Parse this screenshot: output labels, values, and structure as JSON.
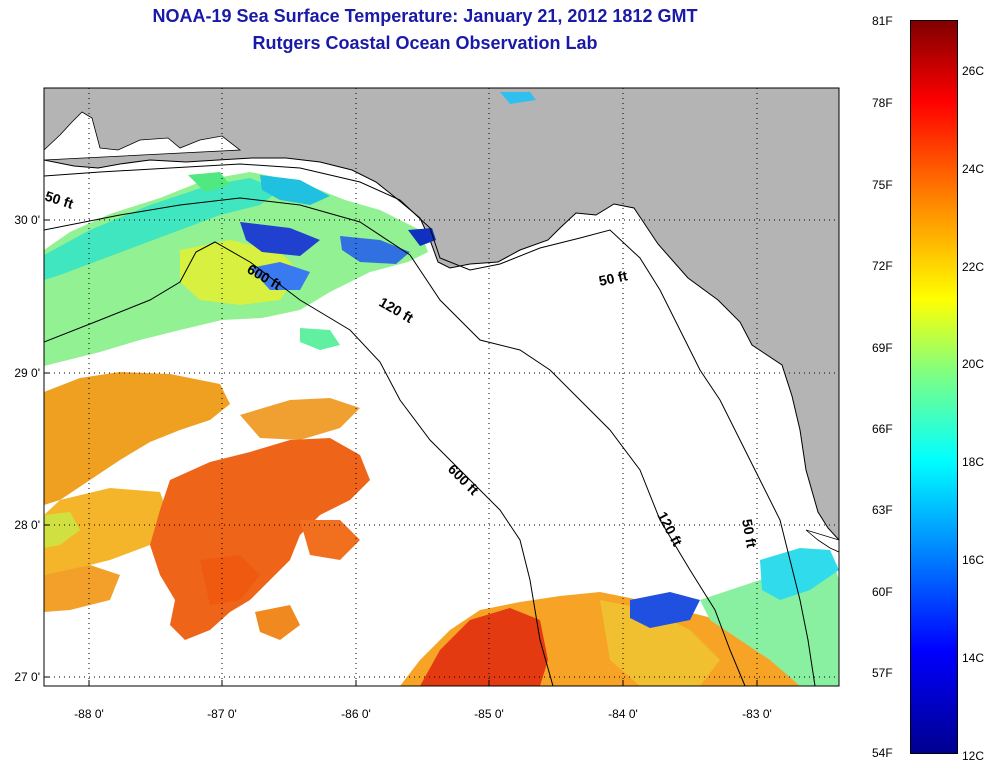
{
  "header": {
    "title": "NOAA-19 Sea Surface Temperature:  January 21, 2012 1812 GMT",
    "subtitle": "Rutgers Coastal Ocean Observation Lab"
  },
  "map": {
    "lat_labels": [
      "30 0'",
      "29 0'",
      "28 0'",
      "27 0'"
    ],
    "lon_labels": [
      "-88 0'",
      "-87 0'",
      "-86 0'",
      "-85 0'",
      "-84 0'",
      "-83 0'"
    ],
    "contour_labels": {
      "c50_west": "50 ft",
      "c600_north": "600 ft",
      "c120_north": "120 ft",
      "c50_east": "50 ft",
      "c600_south": "600 ft",
      "c120_south": "120 ft",
      "c50_south": "50 ft"
    }
  },
  "colorbar": {
    "fahrenheit": [
      "81F",
      "78F",
      "75F",
      "72F",
      "69F",
      "66F",
      "63F",
      "60F",
      "57F",
      "54F"
    ],
    "celsius": [
      "26C",
      "24C",
      "22C",
      "20C",
      "18C",
      "16C",
      "14C",
      "12C"
    ]
  },
  "colors": {
    "land": "#b4b4b4",
    "title": "#1a1aa8"
  }
}
